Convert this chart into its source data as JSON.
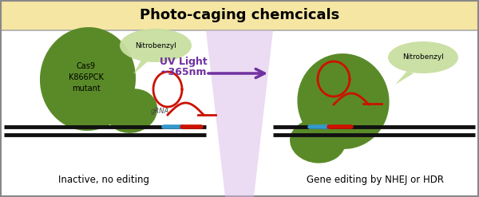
{
  "title": "Photo-caging chemcicals",
  "title_bg": "#f5e6a3",
  "title_fontsize": 13,
  "left_label": "Inactive, no editing",
  "right_label": "Gene editing by NHEJ or HDR",
  "uv_label1": "UV Light",
  "uv_label2": "~365nm",
  "cas9_label": "Cas9\nK866PCK\nmutant",
  "nitrobenzyl_label": "Nitrobenzyl",
  "nitrobenzyl_label2": "Nitrobenzyl",
  "grna_label": "gRNA",
  "dark_green": "#5a8a28",
  "light_green": "#c8dfa0",
  "uv_purple": "#d8b8e8",
  "arrow_purple": "#7030a0",
  "dna_black": "#111111",
  "red_color": "#cc1100",
  "blue_color": "#3399cc",
  "bg_color": "#ffffff",
  "border_color": "#888888",
  "title_border": "#aaaaaa"
}
